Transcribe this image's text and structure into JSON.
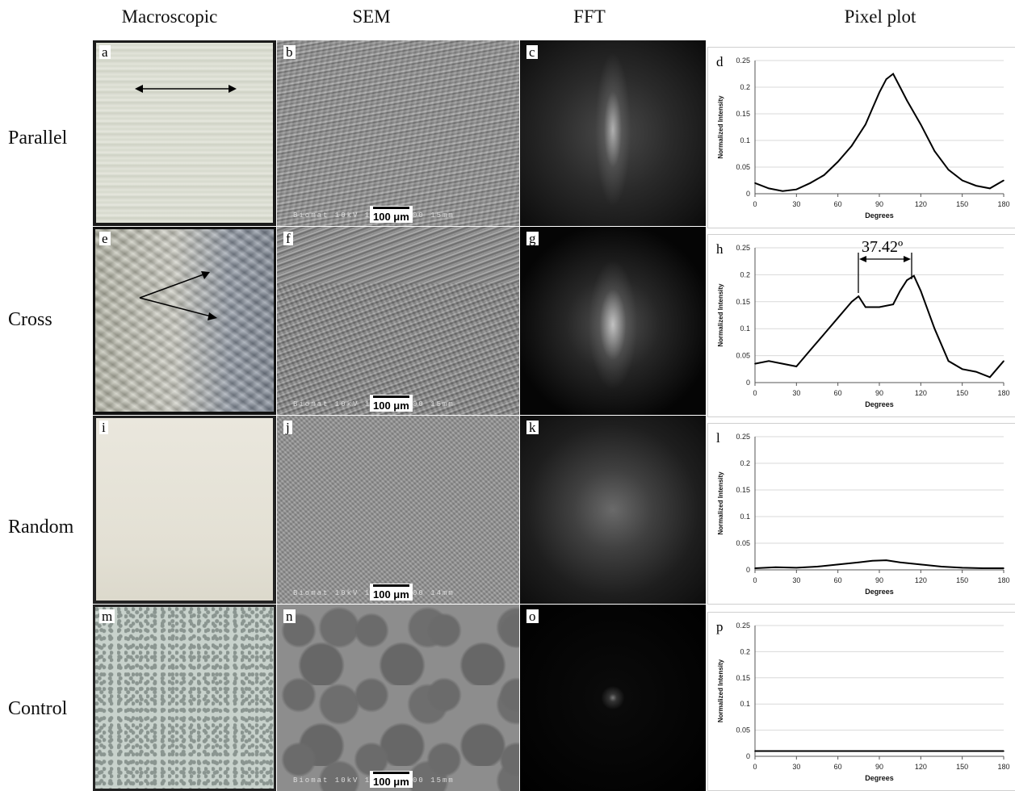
{
  "columns": [
    "Macroscopic",
    "SEM",
    "FFT",
    "Pixel plot"
  ],
  "rows": [
    "Parallel",
    "Cross",
    "Random",
    "Control"
  ],
  "panel_labels": {
    "macroscopic": [
      "a",
      "e",
      "i",
      "m"
    ],
    "sem": [
      "b",
      "f",
      "j",
      "n"
    ],
    "fft": [
      "c",
      "g",
      "k",
      "o"
    ],
    "plot": [
      "d",
      "h",
      "l",
      "p"
    ]
  },
  "scale_bar": "100 μm",
  "sem_footer": [
    "Biomat  10kV  100μm  x200  15mm",
    "Biomat  10kV  100μm  x200  15mm",
    "Biomat  10kV  100μm  x200  14mm",
    "Biomat  10kV  100μm  x200  15mm"
  ],
  "annotation": "37.42º",
  "chart_data": [
    {
      "type": "line",
      "panel": "d",
      "xlabel": "Degrees",
      "ylabel": "Normalized Intensity",
      "xlim": [
        0,
        180
      ],
      "ylim": [
        0,
        0.25
      ],
      "xticks": [
        0,
        30,
        60,
        90,
        120,
        150,
        180
      ],
      "yticks": [
        0,
        0.05,
        0.1,
        0.15,
        0.2,
        0.25
      ],
      "x": [
        0,
        10,
        20,
        30,
        40,
        50,
        60,
        70,
        80,
        85,
        90,
        95,
        100,
        105,
        110,
        120,
        130,
        140,
        150,
        160,
        170,
        180
      ],
      "y": [
        0.02,
        0.01,
        0.005,
        0.008,
        0.02,
        0.035,
        0.06,
        0.09,
        0.13,
        0.16,
        0.19,
        0.215,
        0.225,
        0.2,
        0.175,
        0.13,
        0.08,
        0.045,
        0.025,
        0.015,
        0.01,
        0.025
      ]
    },
    {
      "type": "line",
      "panel": "h",
      "xlabel": "Degrees",
      "ylabel": "Normalized Intensity",
      "xlim": [
        0,
        180
      ],
      "ylim": [
        0,
        0.25
      ],
      "xticks": [
        0,
        30,
        60,
        90,
        120,
        150,
        180
      ],
      "yticks": [
        0,
        0.05,
        0.1,
        0.15,
        0.2,
        0.25
      ],
      "x": [
        0,
        10,
        20,
        30,
        35,
        40,
        50,
        60,
        70,
        75,
        80,
        90,
        100,
        105,
        110,
        115,
        120,
        130,
        140,
        150,
        160,
        170,
        180
      ],
      "y": [
        0.035,
        0.04,
        0.035,
        0.03,
        0.045,
        0.06,
        0.09,
        0.12,
        0.15,
        0.16,
        0.14,
        0.14,
        0.145,
        0.17,
        0.19,
        0.198,
        0.17,
        0.1,
        0.04,
        0.025,
        0.02,
        0.01,
        0.04
      ]
    },
    {
      "type": "line",
      "panel": "l",
      "xlabel": "Degrees",
      "ylabel": "Normalized Intensity",
      "xlim": [
        0,
        180
      ],
      "ylim": [
        0,
        0.25
      ],
      "xticks": [
        0,
        30,
        60,
        90,
        120,
        150,
        180
      ],
      "yticks": [
        0,
        0.05,
        0.1,
        0.15,
        0.2,
        0.25
      ],
      "x": [
        0,
        15,
        30,
        45,
        60,
        75,
        85,
        95,
        105,
        120,
        135,
        150,
        165,
        180
      ],
      "y": [
        0.003,
        0.005,
        0.004,
        0.006,
        0.01,
        0.014,
        0.017,
        0.018,
        0.014,
        0.01,
        0.006,
        0.004,
        0.003,
        0.003
      ]
    },
    {
      "type": "line",
      "panel": "p",
      "xlabel": "Degrees",
      "ylabel": "Normalized Intensity",
      "xlim": [
        0,
        180
      ],
      "ylim": [
        0,
        0.25
      ],
      "xticks": [
        0,
        30,
        60,
        90,
        120,
        150,
        180
      ],
      "yticks": [
        0,
        0.05,
        0.1,
        0.15,
        0.2,
        0.25
      ],
      "x": [
        0,
        30,
        60,
        90,
        120,
        150,
        180
      ],
      "y": [
        0.01,
        0.01,
        0.01,
        0.01,
        0.01,
        0.01,
        0.01
      ]
    }
  ]
}
